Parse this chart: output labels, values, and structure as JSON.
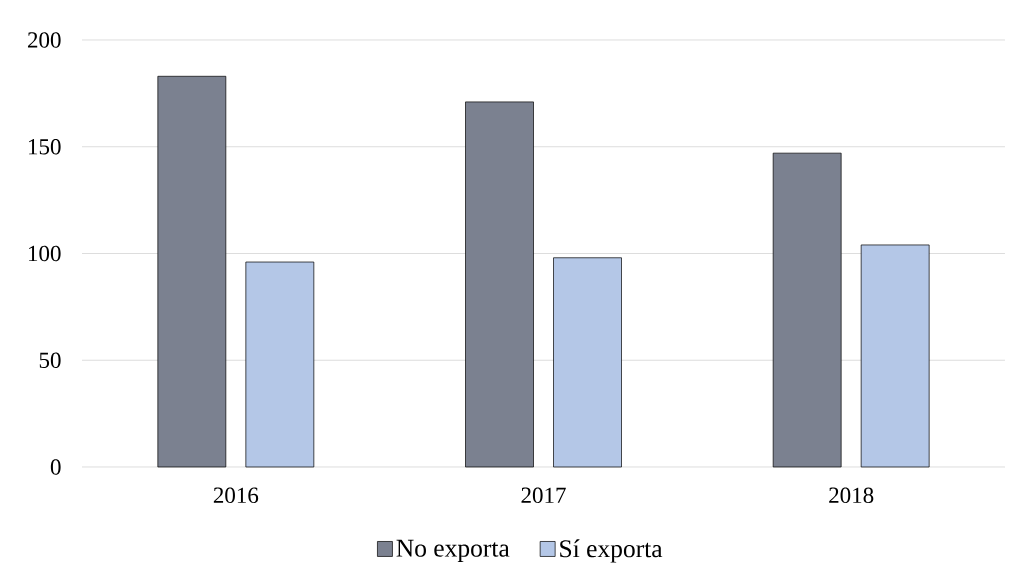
{
  "chart_data": {
    "type": "bar",
    "categories": [
      "2016",
      "2017",
      "2018"
    ],
    "series": [
      {
        "name": "No exporta",
        "color": "#7b8190",
        "values": [
          183,
          171,
          147
        ]
      },
      {
        "name": "Sí exporta",
        "color": "#b4c7e7",
        "values": [
          96,
          98,
          104
        ]
      }
    ],
    "ylim": [
      0,
      200
    ],
    "yticks": [
      0,
      50,
      100,
      150,
      200
    ],
    "grid": "y",
    "legend": "bottom"
  }
}
